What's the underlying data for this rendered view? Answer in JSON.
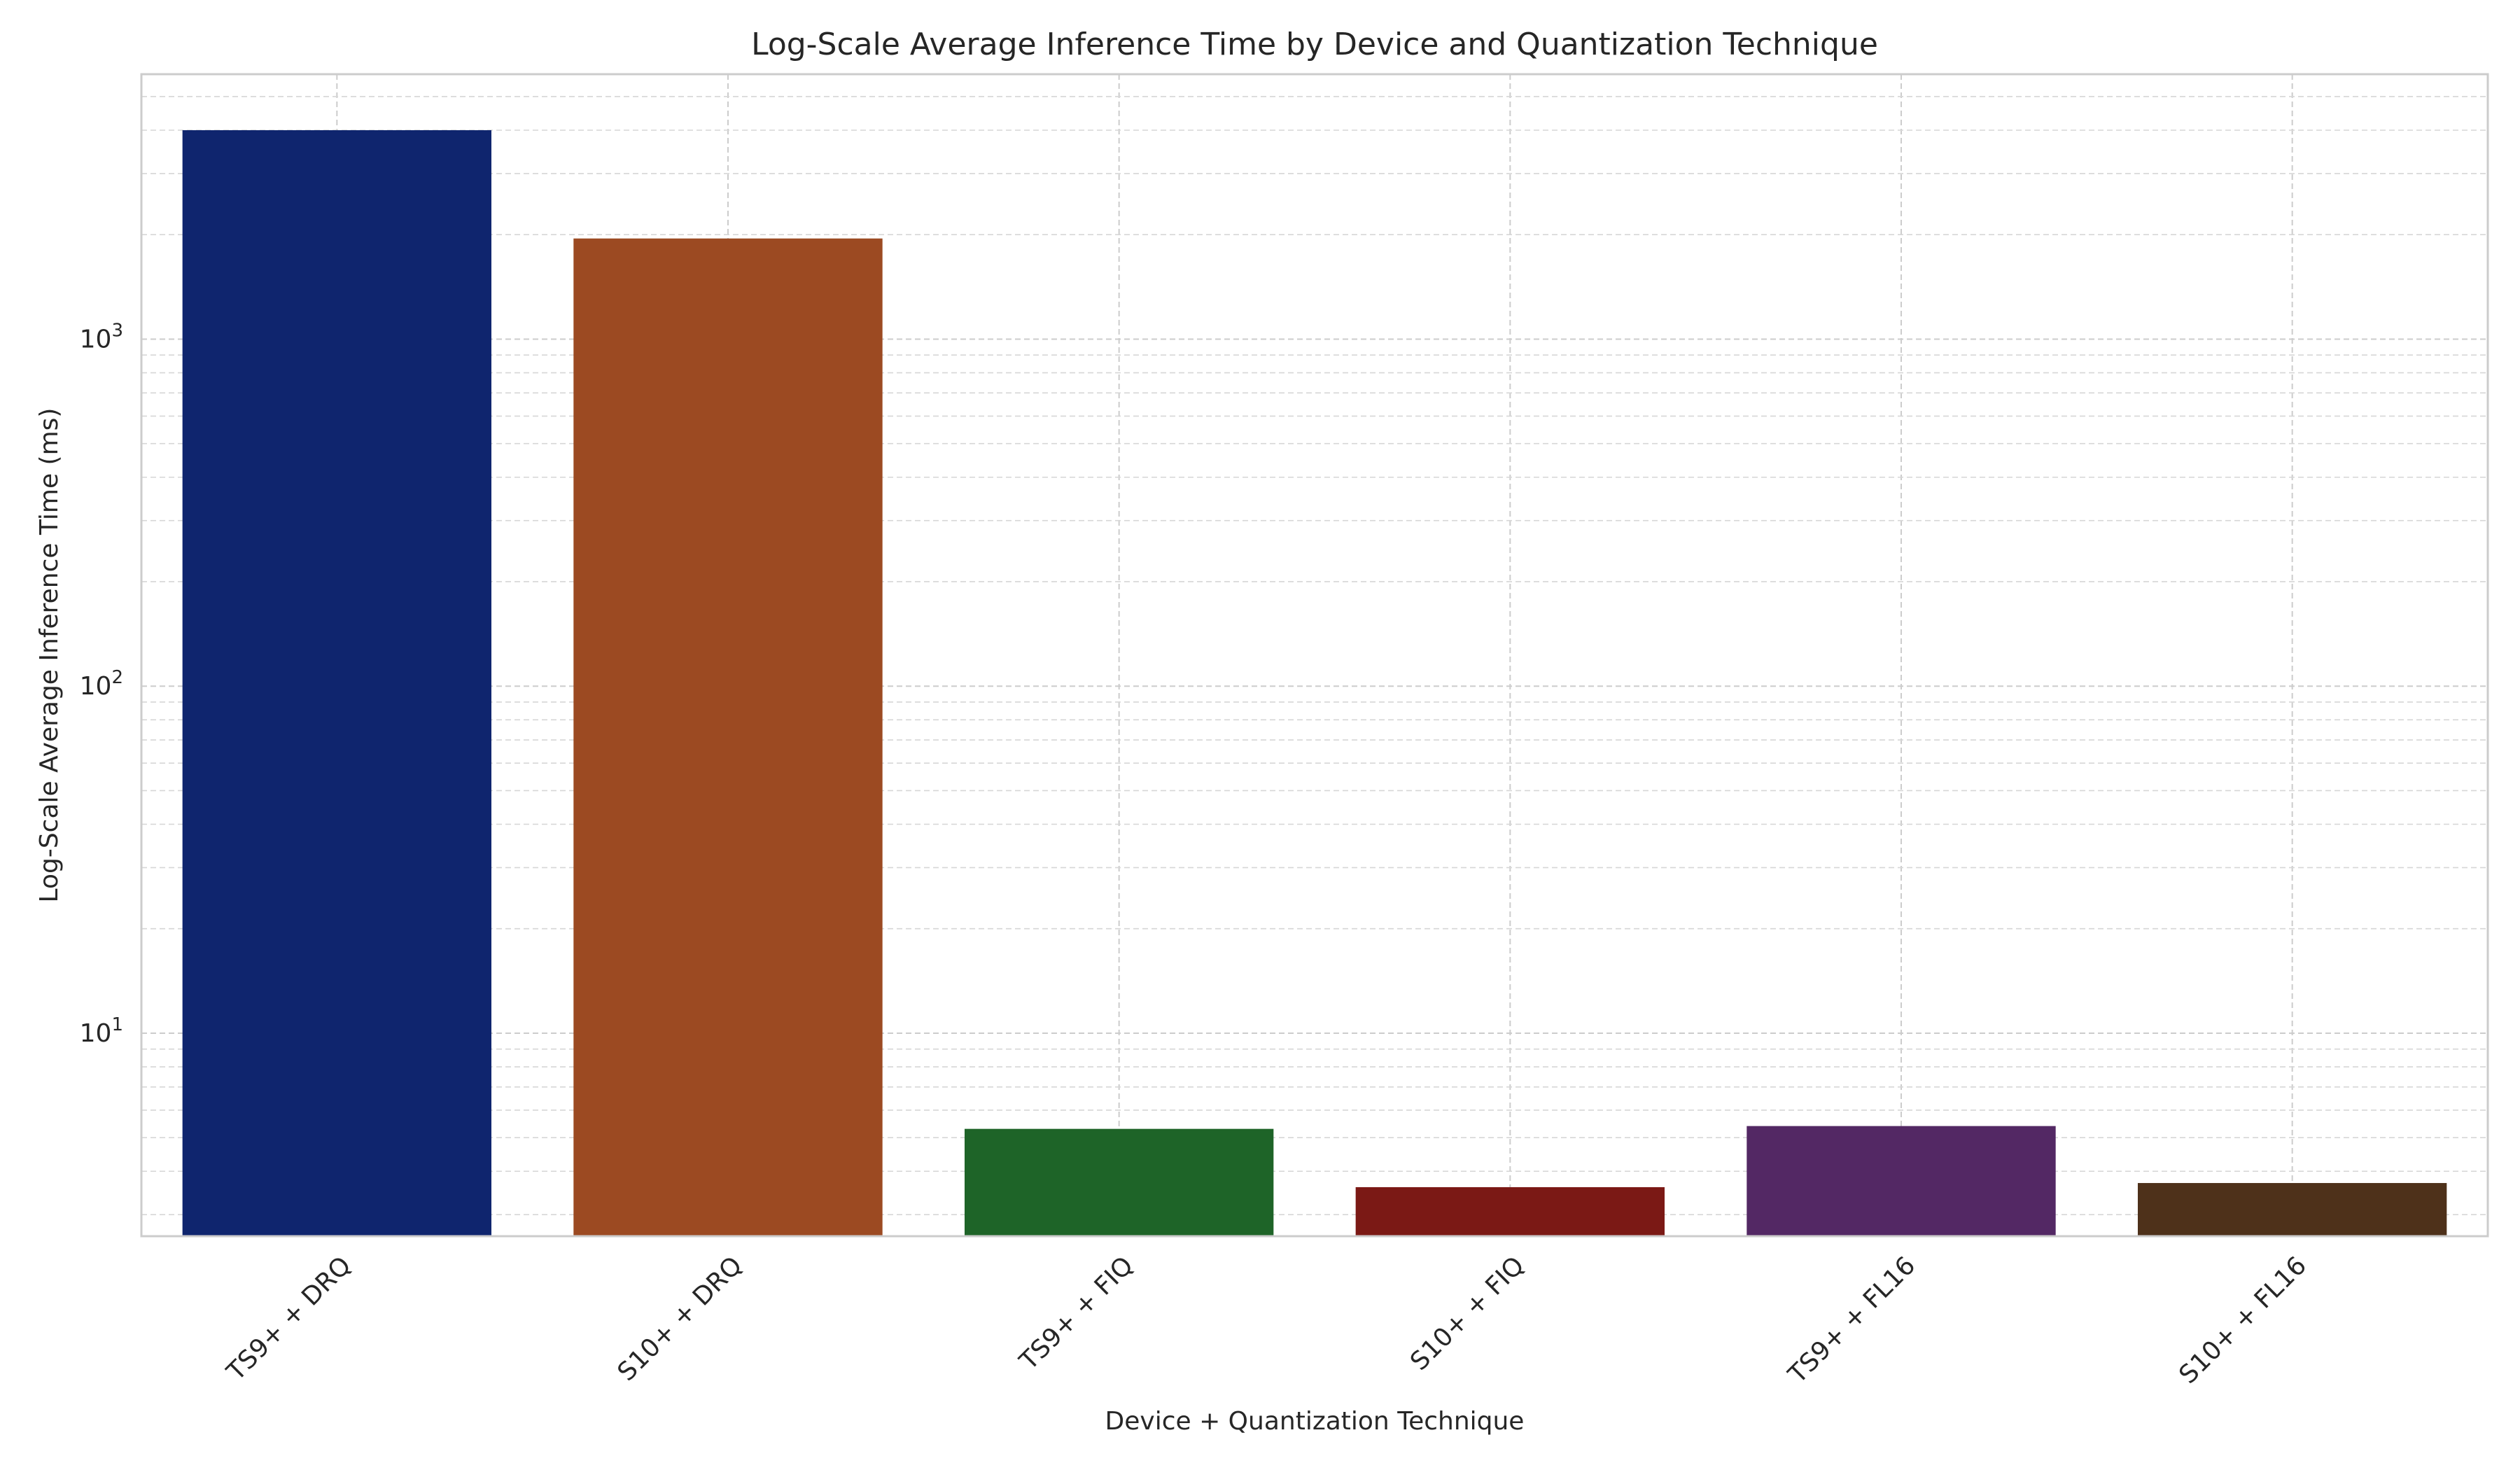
{
  "chart_data": {
    "type": "bar",
    "title": "Log-Scale Average Inference Time by Device and Quantization Technique",
    "xlabel": "Device + Quantization Technique",
    "ylabel": "Log-Scale Average Inference Time (ms)",
    "yscale": "log",
    "ylim": [
      2.6,
      5800
    ],
    "yticks": [
      {
        "value": 10,
        "base": "10",
        "exp": "1"
      },
      {
        "value": 100,
        "base": "10",
        "exp": "2"
      },
      {
        "value": 1000,
        "base": "10",
        "exp": "3"
      }
    ],
    "grid": true,
    "categories": [
      "TS9+ + DRQ",
      "S10+ + DRQ",
      "TS9+ + FIQ",
      "S10+ + FIQ",
      "TS9+ + FL16",
      "S10+ + FL16"
    ],
    "values": [
      4000,
      1950,
      5.3,
      3.6,
      5.4,
      3.7
    ],
    "colors": [
      "#0f256e",
      "#9c4a22",
      "#1e6428",
      "#7b1915",
      "#532864",
      "#4e311a"
    ]
  }
}
